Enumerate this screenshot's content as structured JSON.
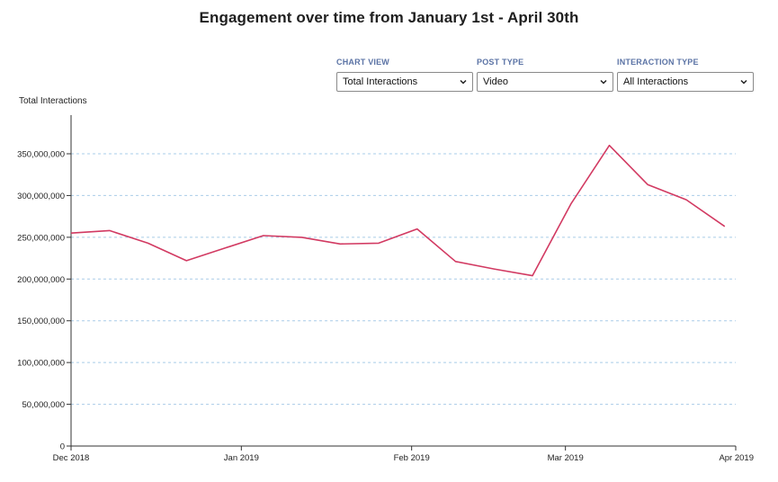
{
  "title": "Engagement over time from January 1st - April 30th",
  "controls": [
    {
      "label": "CHART VIEW",
      "value": "Total Interactions"
    },
    {
      "label": "POST TYPE",
      "value": "Video"
    },
    {
      "label": "INTERACTION TYPE",
      "value": "All Interactions"
    }
  ],
  "chart_data": {
    "type": "line",
    "ylabel": "Total Interactions",
    "ylim": [
      0,
      350000000
    ],
    "yticks": [
      0,
      50000000,
      100000000,
      150000000,
      200000000,
      250000000,
      300000000,
      350000000
    ],
    "ytick_labels": [
      "0",
      "50,000,000",
      "100,000,000",
      "150,000,000",
      "200,000,000",
      "250,000,000",
      "300,000,000",
      "350,000,000"
    ],
    "xlim": [
      "2018-12-01",
      "2019-04-01"
    ],
    "xticks": [
      "2018-12-01",
      "2019-01-01",
      "2019-02-01",
      "2019-03-01",
      "2019-04-01"
    ],
    "xtick_labels": [
      "Dec 2018",
      "Jan 2019",
      "Feb 2019",
      "Mar 2019",
      "Apr 2019"
    ],
    "grid": "horizontal dashed",
    "line_color": "#d23a62",
    "grid_color": "#a9cce8",
    "series": [
      {
        "x": [
          "2018-12-01",
          "2018-12-08",
          "2018-12-15",
          "2018-12-22",
          "2018-12-29",
          "2019-01-05",
          "2019-01-12",
          "2019-01-19",
          "2019-01-26",
          "2019-02-02",
          "2019-02-09",
          "2019-02-16",
          "2019-02-23",
          "2019-03-02",
          "2019-03-09",
          "2019-03-16",
          "2019-03-23",
          "2019-03-30"
        ],
        "values": [
          255000000,
          258000000,
          243000000,
          222000000,
          237000000,
          252000000,
          250000000,
          242000000,
          243000000,
          260000000,
          221000000,
          212000000,
          204000000,
          290000000,
          360000000,
          313000000,
          295000000,
          263000000
        ]
      }
    ]
  }
}
